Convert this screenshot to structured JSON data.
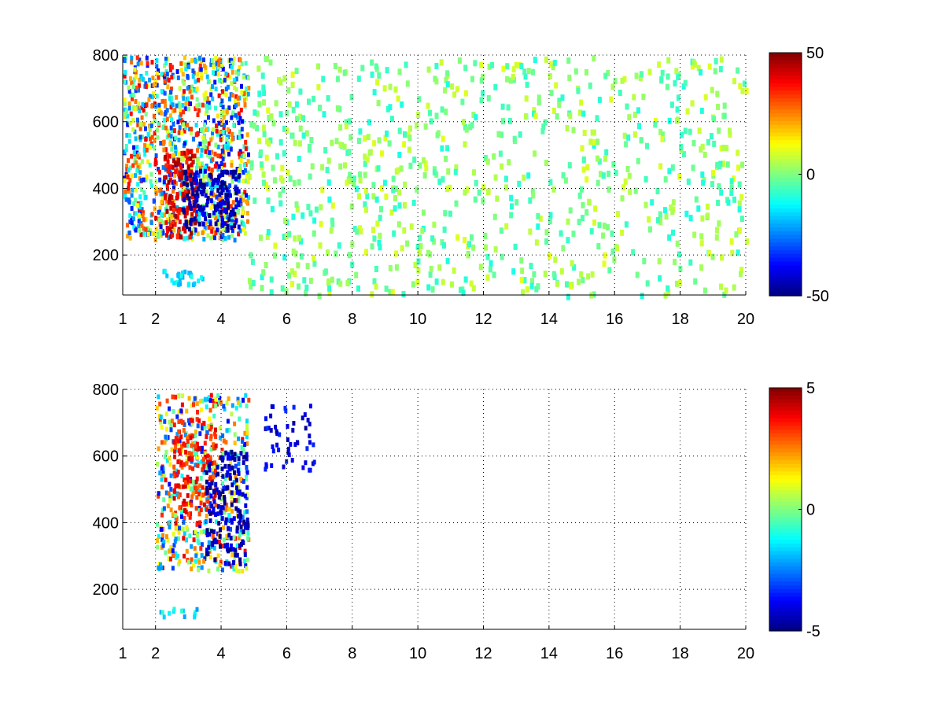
{
  "chart_data": [
    {
      "type": "heatmap",
      "panel": "top",
      "title": "",
      "xlabel": "",
      "ylabel": "",
      "xlim": [
        1,
        20
      ],
      "ylim": [
        80,
        800
      ],
      "x_ticks": [
        1,
        2,
        4,
        6,
        8,
        10,
        12,
        14,
        16,
        18,
        20
      ],
      "y_ticks": [
        200,
        400,
        600,
        800
      ],
      "grid": true,
      "colormap": "jet",
      "colorbar": {
        "min": -50,
        "max": 50,
        "ticks": [
          50,
          0,
          -50
        ]
      },
      "features": [
        {
          "desc": "dense mixed band",
          "x": [
            1.0,
            4.8
          ],
          "y": [
            250,
            800
          ],
          "value_range": [
            -50,
            50
          ]
        },
        {
          "desc": "positive ridge",
          "x": [
            2.2,
            3.2
          ],
          "y": [
            260,
            520
          ],
          "value": 40
        },
        {
          "desc": "negative band",
          "x": [
            2.8,
            4.5
          ],
          "y": [
            280,
            460
          ],
          "value": -45
        },
        {
          "desc": "sparse scatter",
          "x": [
            4.8,
            20.0
          ],
          "y": [
            80,
            800
          ],
          "value_range": [
            -10,
            10
          ]
        },
        {
          "desc": "low cluster",
          "x": [
            2.2,
            3.4
          ],
          "y": [
            110,
            160
          ],
          "value": -15
        }
      ]
    },
    {
      "type": "heatmap",
      "panel": "bottom",
      "title": "",
      "xlabel": "",
      "ylabel": "",
      "xlim": [
        1,
        20
      ],
      "ylim": [
        80,
        800
      ],
      "x_ticks": [
        1,
        2,
        4,
        6,
        8,
        10,
        12,
        14,
        16,
        18,
        20
      ],
      "y_ticks": [
        200,
        400,
        600,
        800
      ],
      "grid": true,
      "colormap": "jet",
      "colorbar": {
        "min": -5,
        "max": 5,
        "ticks": [
          5,
          0,
          -5
        ]
      },
      "features": [
        {
          "desc": "main cluster",
          "x": [
            2.0,
            4.8
          ],
          "y": [
            260,
            790
          ],
          "value_range": [
            -5,
            5
          ]
        },
        {
          "desc": "positive core",
          "x": [
            2.5,
            3.8
          ],
          "y": [
            430,
            720
          ],
          "value": 3.5
        },
        {
          "desc": "negative edge",
          "x": [
            3.5,
            4.8
          ],
          "y": [
            280,
            620
          ],
          "value": -4.5
        },
        {
          "desc": "low cluster",
          "x": [
            2.1,
            3.3
          ],
          "y": [
            120,
            150
          ],
          "value": -1.5
        },
        {
          "desc": "isolated points",
          "x": [
            5.3,
            6.8
          ],
          "y": [
            560,
            760
          ],
          "value": -4
        }
      ]
    }
  ]
}
